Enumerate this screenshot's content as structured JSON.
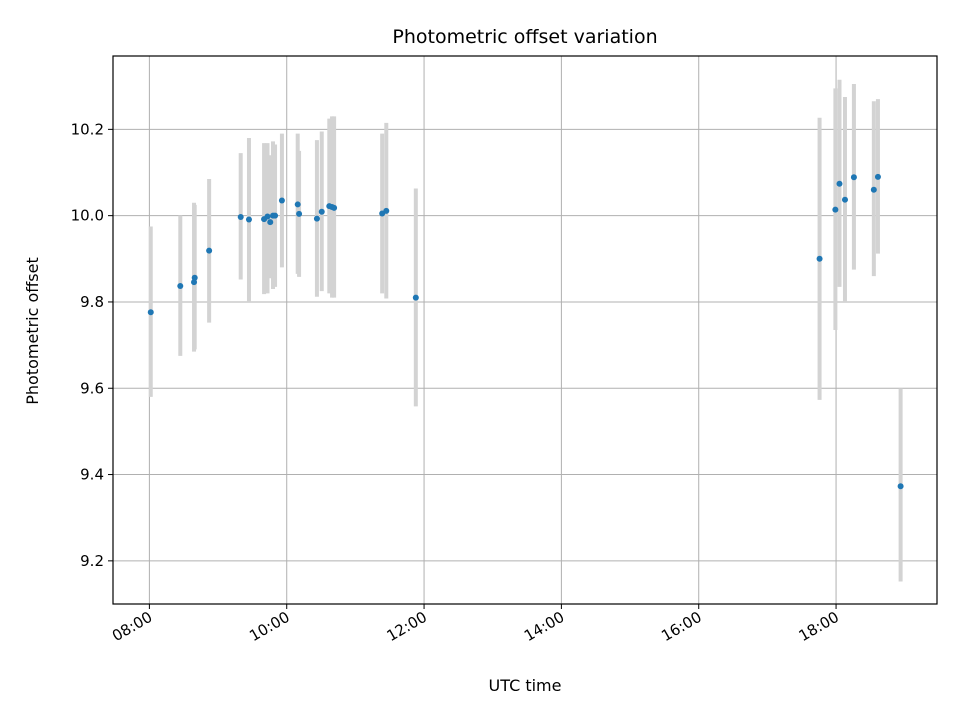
{
  "chart_data": {
    "type": "scatter",
    "title": "Photometric offset variation",
    "xlabel": "UTC time",
    "ylabel": "Photometric offset",
    "x_unit": "hours",
    "xlim": [
      7.47,
      19.47
    ],
    "ylim": [
      9.1,
      10.37
    ],
    "xticks": [
      {
        "value": 8,
        "label": "08:00"
      },
      {
        "value": 10,
        "label": "10:00"
      },
      {
        "value": 12,
        "label": "12:00"
      },
      {
        "value": 14,
        "label": "14:00"
      },
      {
        "value": 16,
        "label": "16:00"
      },
      {
        "value": 18,
        "label": "18:00"
      }
    ],
    "yticks": [
      {
        "value": 9.2,
        "label": "9.2"
      },
      {
        "value": 9.4,
        "label": "9.4"
      },
      {
        "value": 9.6,
        "label": "9.6"
      },
      {
        "value": 9.8,
        "label": "9.8"
      },
      {
        "value": 10.0,
        "label": "10.0"
      },
      {
        "value": 10.2,
        "label": "10.2"
      }
    ],
    "grid": true,
    "point_color": "#1f77b4",
    "errorbar_color": "#d3d3d3",
    "points": [
      {
        "x": 8.02,
        "y": 9.776,
        "lo": 9.58,
        "hi": 9.975
      },
      {
        "x": 8.45,
        "y": 9.837,
        "lo": 9.675,
        "hi": 10.0
      },
      {
        "x": 8.65,
        "y": 9.846,
        "lo": 9.685,
        "hi": 10.03
      },
      {
        "x": 8.66,
        "y": 9.856,
        "lo": 9.69,
        "hi": 10.025
      },
      {
        "x": 8.87,
        "y": 9.919,
        "lo": 9.752,
        "hi": 10.085
      },
      {
        "x": 9.33,
        "y": 9.997,
        "lo": 9.852,
        "hi": 10.145
      },
      {
        "x": 9.45,
        "y": 9.991,
        "lo": 9.8,
        "hi": 10.18
      },
      {
        "x": 9.67,
        "y": 9.992,
        "lo": 9.818,
        "hi": 10.168
      },
      {
        "x": 9.72,
        "y": 9.998,
        "lo": 9.82,
        "hi": 10.168
      },
      {
        "x": 9.76,
        "y": 9.985,
        "lo": 9.855,
        "hi": 10.14
      },
      {
        "x": 9.8,
        "y": 10.0,
        "lo": 9.83,
        "hi": 10.172
      },
      {
        "x": 9.83,
        "y": 10.0,
        "lo": 9.835,
        "hi": 10.165
      },
      {
        "x": 9.93,
        "y": 10.035,
        "lo": 9.88,
        "hi": 10.19
      },
      {
        "x": 10.16,
        "y": 10.026,
        "lo": 9.865,
        "hi": 10.19
      },
      {
        "x": 10.18,
        "y": 10.004,
        "lo": 9.858,
        "hi": 10.15
      },
      {
        "x": 10.44,
        "y": 9.993,
        "lo": 9.812,
        "hi": 10.175
      },
      {
        "x": 10.51,
        "y": 10.009,
        "lo": 9.825,
        "hi": 10.195
      },
      {
        "x": 10.62,
        "y": 10.022,
        "lo": 9.82,
        "hi": 10.225
      },
      {
        "x": 10.66,
        "y": 10.02,
        "lo": 9.81,
        "hi": 10.23
      },
      {
        "x": 10.69,
        "y": 10.018,
        "lo": 9.81,
        "hi": 10.23
      },
      {
        "x": 11.39,
        "y": 10.005,
        "lo": 9.82,
        "hi": 10.19
      },
      {
        "x": 11.45,
        "y": 10.011,
        "lo": 9.808,
        "hi": 10.215
      },
      {
        "x": 11.88,
        "y": 9.81,
        "lo": 9.558,
        "hi": 10.063
      },
      {
        "x": 17.76,
        "y": 9.9,
        "lo": 9.573,
        "hi": 10.227
      },
      {
        "x": 17.99,
        "y": 10.014,
        "lo": 9.735,
        "hi": 10.295
      },
      {
        "x": 18.05,
        "y": 10.074,
        "lo": 9.835,
        "hi": 10.315
      },
      {
        "x": 18.13,
        "y": 10.037,
        "lo": 9.8,
        "hi": 10.275
      },
      {
        "x": 18.26,
        "y": 10.089,
        "lo": 9.875,
        "hi": 10.305
      },
      {
        "x": 18.55,
        "y": 10.06,
        "lo": 9.86,
        "hi": 10.265
      },
      {
        "x": 18.61,
        "y": 10.09,
        "lo": 9.912,
        "hi": 10.27
      },
      {
        "x": 18.94,
        "y": 9.373,
        "lo": 9.152,
        "hi": 9.6
      }
    ]
  }
}
